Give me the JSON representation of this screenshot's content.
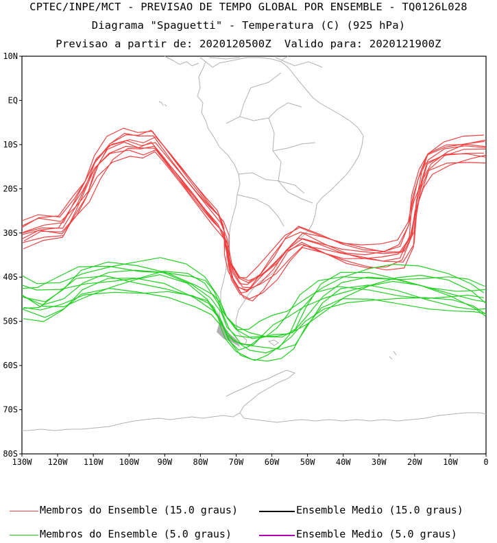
{
  "title": {
    "line1": "CPTEC/INPE/MCT - PREVISAO DE TEMPO GLOBAL POR ENSEMBLE - TQ0126L028",
    "line2": "Diagrama \"Spaguetti\" - Temperatura (C) (925 hPa)",
    "line3": "Previsao a partir de: 2020120500Z  Valido para: 2020121900Z"
  },
  "axes": {
    "y_ticks": [
      "10N",
      "EQ",
      "10S",
      "20S",
      "30S",
      "40S",
      "50S",
      "60S",
      "70S",
      "80S"
    ],
    "x_ticks": [
      "130W",
      "120W",
      "110W",
      "100W",
      "90W",
      "80W",
      "70W",
      "60W",
      "50W",
      "40W",
      "30W",
      "20W",
      "10W",
      "0"
    ],
    "lat_range": [
      10,
      -80
    ],
    "lon_range": [
      -130,
      0
    ]
  },
  "legend": {
    "members_15": "Membros do Ensemble (15.0 graus)",
    "mean_15": "Ensemble Medio (15.0 graus)",
    "members_5": "Membros do Ensemble (5.0 graus)",
    "mean_5": "Ensemble Medio (5.0 graus)"
  },
  "colors": {
    "members_15": "#f04040",
    "mean_15": "#000000",
    "members_5": "#20d020",
    "mean_5": "#b000b0",
    "coastline": "#b0b0b0"
  }
}
